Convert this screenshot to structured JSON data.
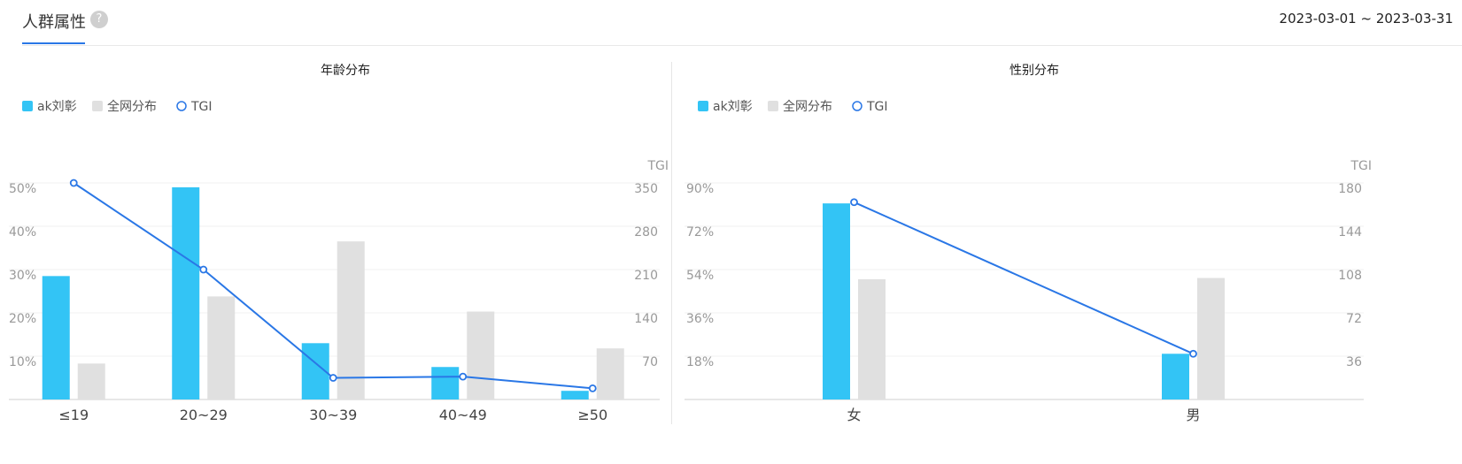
{
  "header": {
    "title": "人群属性",
    "help_icon": "question-circle-icon",
    "date_range": "2023-03-01 ~ 2023-03-31"
  },
  "legend": {
    "items": [
      {
        "label": "ak刘彰",
        "color": "#33c4f5",
        "shape": "square"
      },
      {
        "label": "全网分布",
        "color": "#e0e0e0",
        "shape": "square"
      },
      {
        "label": "TGI",
        "color": "#2a77e6",
        "shape": "circle"
      }
    ]
  },
  "colors": {
    "primary": "#33c4f5",
    "secondary": "#e0e0e0",
    "tgi": "#2a77e6"
  },
  "chart_data": [
    {
      "type": "bar",
      "title": "年龄分布",
      "categories": [
        "≤19",
        "20~29",
        "30~39",
        "40~49",
        "≥50"
      ],
      "series": [
        {
          "name": "ak刘彰",
          "values": [
            28.5,
            49,
            13,
            7.5,
            2
          ]
        },
        {
          "name": "全网分布",
          "values": [
            8.3,
            23.8,
            36.5,
            20.3,
            11.8
          ]
        },
        {
          "name": "TGI",
          "type": "line",
          "axis": "right",
          "values": [
            350,
            210,
            35,
            37,
            18
          ]
        }
      ],
      "yleft": {
        "ylim": [
          0,
          50
        ],
        "ticks": [
          "10%",
          "20%",
          "30%",
          "40%",
          "50%"
        ]
      },
      "yright": {
        "label": "TGI",
        "ylim": [
          0,
          350
        ],
        "ticks": [
          "70",
          "140",
          "210",
          "280",
          "350"
        ]
      }
    },
    {
      "type": "bar",
      "title": "性别分布",
      "categories": [
        "女",
        "男"
      ],
      "series": [
        {
          "name": "ak刘彰",
          "values": [
            81.5,
            19
          ]
        },
        {
          "name": "全网分布",
          "values": [
            50,
            50.5
          ]
        },
        {
          "name": "TGI",
          "type": "line",
          "axis": "right",
          "values": [
            164,
            38
          ]
        }
      ],
      "yleft": {
        "ylim": [
          0,
          90
        ],
        "ticks": [
          "18%",
          "36%",
          "54%",
          "72%",
          "90%"
        ]
      },
      "yright": {
        "label": "TGI",
        "ylim": [
          0,
          180
        ],
        "ticks": [
          "36",
          "72",
          "108",
          "144",
          "180"
        ]
      }
    }
  ]
}
